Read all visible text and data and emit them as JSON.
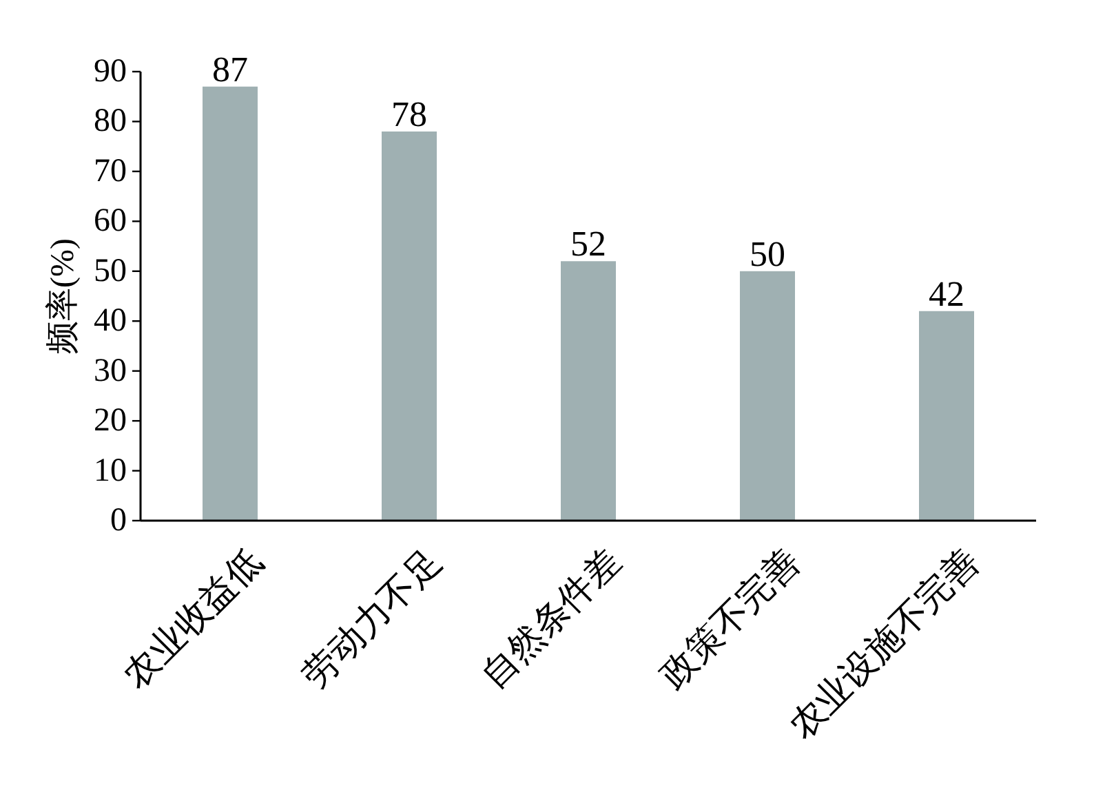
{
  "chart_data": {
    "type": "bar",
    "ylabel": "频率(%)",
    "categories": [
      "农业收益低",
      "劳动力不足",
      "自然条件差",
      "政策不完善",
      "农业设施不完善"
    ],
    "values": [
      87,
      78,
      52,
      50,
      42
    ],
    "color": "#9fb0b2",
    "ylim": [
      0,
      90
    ],
    "yticks": [
      0,
      10,
      20,
      30,
      40,
      50,
      60,
      70,
      80,
      90
    ],
    "data_labels": true
  }
}
